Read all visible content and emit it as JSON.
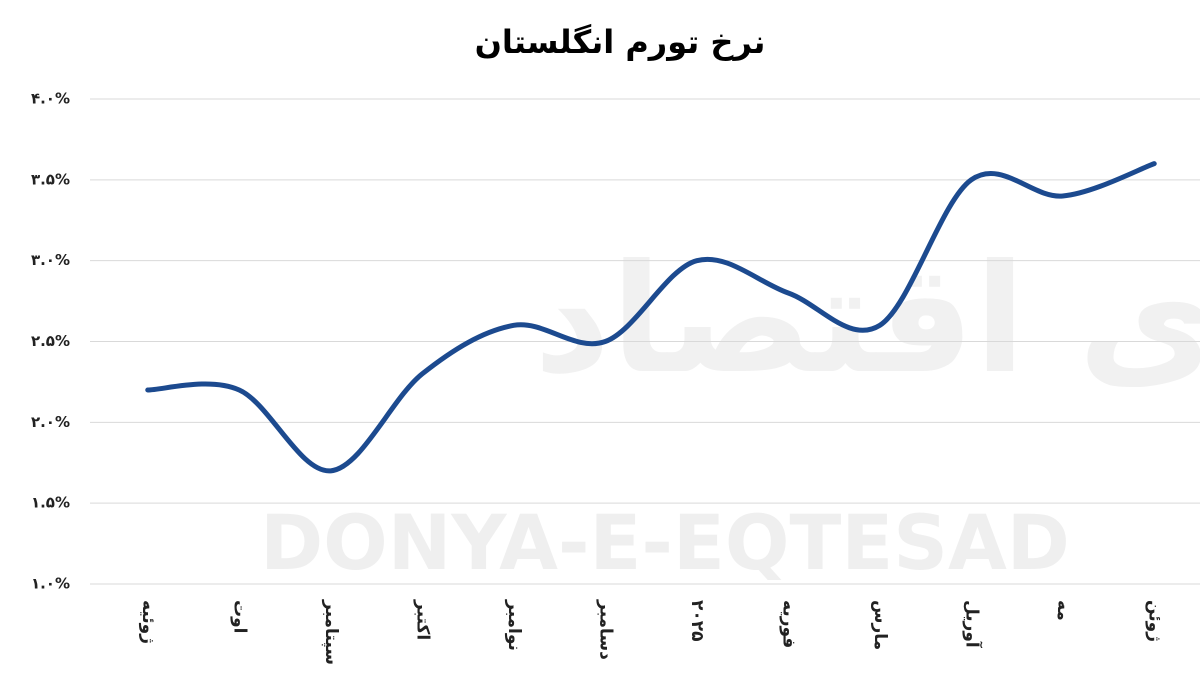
{
  "chart_data": {
    "type": "line",
    "title": "نرخ تورم انگلستان",
    "watermark": "DONYA-E-EQTESAD",
    "watermark_fa": "دنیای اقتصاد",
    "categories": [
      "ژوئیه",
      "اوت",
      "سپتامبر",
      "اکتبر",
      "نوامبر",
      "دسامبر",
      "۲۰۲۵",
      "فوریه",
      "مارس",
      "آوریل",
      "مه",
      "ژوئن"
    ],
    "values": [
      2.2,
      2.2,
      1.7,
      2.3,
      2.6,
      2.5,
      3.0,
      2.8,
      2.6,
      3.5,
      3.4,
      3.6
    ],
    "color": "#1c4a8f",
    "ylim": [
      1.0,
      4.0
    ],
    "yticks": [
      {
        "value": 1.0,
        "label": "۱.۰%"
      },
      {
        "value": 1.5,
        "label": "۱.۵%"
      },
      {
        "value": 2.0,
        "label": "۲.۰%"
      },
      {
        "value": 2.5,
        "label": "۲.۵%"
      },
      {
        "value": 3.0,
        "label": "۳.۰%"
      },
      {
        "value": 3.5,
        "label": "۳.۵%"
      },
      {
        "value": 4.0,
        "label": "۴.۰%"
      }
    ],
    "grid": true
  }
}
